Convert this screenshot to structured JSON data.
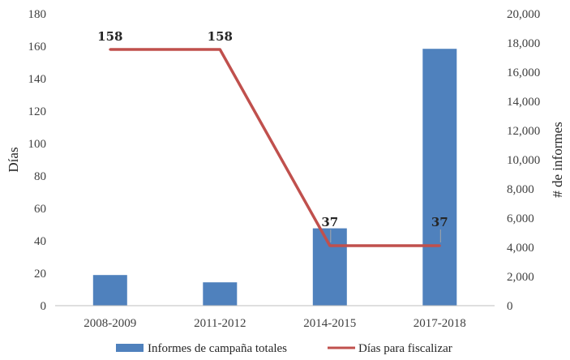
{
  "chart_data": {
    "type": "bar",
    "categories": [
      "2008-2009",
      "2011-2012",
      "2014-2015",
      "2017-2018"
    ],
    "series": [
      {
        "name": "Informes de campaña totales",
        "type": "bar",
        "axis": "right",
        "values": [
          2100,
          1600,
          5300,
          17600
        ],
        "color": "#4f81bd"
      },
      {
        "name": "Días para fiscalizar",
        "type": "line",
        "axis": "left",
        "values": [
          158,
          158,
          37,
          37
        ],
        "data_labels": [
          "158",
          "158",
          "37",
          "37"
        ],
        "color": "#c0504d"
      }
    ],
    "ylabel": "Días",
    "ylim": [
      0,
      180
    ],
    "yticks": [
      "0",
      "20",
      "40",
      "60",
      "80",
      "100",
      "120",
      "140",
      "160",
      "180"
    ],
    "y2label": "# de informes",
    "y2lim": [
      0,
      20000
    ],
    "y2ticks": [
      "0",
      "2,000",
      "4,000",
      "6,000",
      "8,000",
      "10,000",
      "12,000",
      "14,000",
      "16,000",
      "18,000",
      "20,000"
    ],
    "grid": false,
    "legend_position": "bottom"
  }
}
